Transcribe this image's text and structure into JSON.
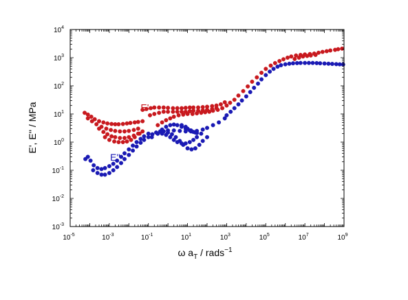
{
  "chart_data": {
    "type": "scatter",
    "xscale": "log",
    "yscale": "log",
    "xlim": [
      1e-05,
      1000000000.0
    ],
    "ylim": [
      0.001,
      10000.0
    ],
    "xlabel": {
      "main": "ω a",
      "sub": "T",
      "rest": " / rads",
      "sup": "−1"
    },
    "ylabel": "E', E'' / MPa",
    "x_ticks": [
      {
        "value": 1e-05,
        "base": "10",
        "exp": "-5"
      },
      {
        "value": 0.001,
        "base": "10",
        "exp": "-3"
      },
      {
        "value": 0.1,
        "base": "10",
        "exp": "-1"
      },
      {
        "value": 10.0,
        "base": "10",
        "exp": "1"
      },
      {
        "value": 1000.0,
        "base": "10",
        "exp": "3"
      },
      {
        "value": 100000.0,
        "base": "10",
        "exp": "5"
      },
      {
        "value": 10000000.0,
        "base": "10",
        "exp": "7"
      },
      {
        "value": 1000000000.0,
        "base": "10",
        "exp": "9"
      }
    ],
    "y_ticks": [
      {
        "value": 0.001,
        "base": "10",
        "exp": "-3"
      },
      {
        "value": 0.01,
        "base": "10",
        "exp": "-2"
      },
      {
        "value": 0.1,
        "base": "10",
        "exp": "-1"
      },
      {
        "value": 1.0,
        "base": "10",
        "exp": "0"
      },
      {
        "value": 10.0,
        "base": "10",
        "exp": "1"
      },
      {
        "value": 100.0,
        "base": "10",
        "exp": "2"
      },
      {
        "value": 1000.0,
        "base": "10",
        "exp": "3"
      },
      {
        "value": 10000.0,
        "base": "10",
        "exp": "4"
      }
    ],
    "annotations": [
      {
        "text": "E'",
        "x": 0.04,
        "y": 13,
        "color": "#c8191e"
      },
      {
        "text": "E''",
        "x": 0.0011,
        "y": 0.22,
        "color": "#1a1ab4"
      }
    ],
    "series": [
      {
        "name": "E'",
        "color": "#c8191e",
        "x": [
          5.5e-05,
          8e-05,
          0.00012,
          0.00018,
          0.0003,
          0.0005,
          0.0008,
          0.0013,
          0.002,
          0.003,
          0.005,
          0.008,
          0.012,
          0.02,
          0.03,
          0.05,
          8e-05,
          0.00013,
          0.00022,
          0.0004,
          0.0007,
          0.0012,
          0.002,
          0.0035,
          0.006,
          0.01,
          0.018,
          0.03,
          0.0003,
          0.0005,
          0.0008,
          0.0013,
          0.002,
          0.0035,
          0.006,
          0.01,
          0.018,
          0.03,
          0.05,
          0.0006,
          0.001,
          0.0018,
          0.003,
          0.005,
          0.008,
          0.013,
          0.02,
          0.035,
          0.05,
          0.08,
          0.13,
          0.2,
          0.35,
          0.6,
          1,
          1.8,
          3,
          5,
          8,
          13,
          20,
          35,
          60,
          100,
          180,
          300,
          500,
          800,
          0.12,
          0.2,
          0.35,
          0.6,
          1,
          1.8,
          3,
          5,
          8,
          13,
          20,
          35,
          60,
          100,
          180,
          300,
          0.3,
          0.5,
          0.8,
          1.3,
          2,
          3.5,
          6,
          10,
          18,
          30,
          50,
          80,
          130,
          200,
          350,
          600,
          1000,
          1500,
          2500,
          4000,
          7000,
          12000.0,
          20000.0,
          35000.0,
          60000.0,
          100000.0,
          180000.0,
          300000.0,
          500000.0,
          800000.0,
          1300000.0,
          2000000.0,
          3500000.0,
          6000000.0,
          10000000.0,
          18000000.0,
          30000000.0,
          50000000.0,
          80000000.0,
          130000000.0,
          200000000.0,
          350000000.0,
          500000000.0,
          800000000.0,
          3000000.0,
          5000000.0,
          8000000.0,
          13000000.0,
          20000000.0,
          35000000.0
        ],
        "y": [
          11,
          9.5,
          8,
          6.5,
          5.5,
          5,
          4.6,
          4.4,
          4.3,
          4.3,
          4.4,
          4.6,
          4.8,
          5,
          5.2,
          5.5,
          7,
          5.5,
          4.3,
          3.5,
          3,
          2.7,
          2.5,
          2.4,
          2.4,
          2.5,
          2.7,
          3,
          3,
          2.3,
          1.9,
          1.6,
          1.5,
          1.4,
          1.4,
          1.5,
          1.7,
          2,
          2.4,
          1.5,
          1.2,
          1.05,
          1,
          1,
          1.05,
          1.2,
          1.5,
          2,
          14,
          15,
          16,
          17,
          17,
          17,
          16.5,
          16,
          16,
          16,
          16.5,
          17,
          17,
          17,
          17.5,
          18,
          19,
          20,
          22,
          26,
          9,
          10,
          11,
          12,
          12,
          12,
          12,
          12,
          12,
          12.5,
          13,
          13,
          13.5,
          14,
          15,
          16,
          4,
          5,
          6,
          7,
          8,
          9,
          9.5,
          10,
          10,
          10.5,
          11,
          11.5,
          12,
          13,
          14,
          16,
          20,
          25,
          32,
          45,
          65,
          95,
          140,
          200,
          290,
          400,
          520,
          640,
          760,
          880,
          1000,
          1100,
          1200,
          1250,
          1300,
          1350,
          1400,
          1500,
          1600,
          1700,
          1800,
          1900,
          2000,
          2100,
          900,
          1000,
          1100,
          1150,
          1200,
          1250
        ]
      },
      {
        "name": "E''",
        "color": "#1a1ab4",
        "x": [
          6e-05,
          8e-05,
          0.00011,
          0.00016,
          0.00025,
          0.0004,
          0.0006,
          0.001,
          0.0016,
          0.0025,
          0.004,
          0.006,
          0.01,
          0.016,
          0.025,
          0.04,
          0.06,
          0.1,
          0.00015,
          0.00025,
          0.0004,
          0.0006,
          0.001,
          0.0016,
          0.0025,
          0.004,
          0.006,
          0.01,
          0.016,
          0.025,
          0.04,
          0.06,
          0.1,
          0.16,
          0.25,
          0.4,
          0.6,
          1,
          1.6,
          2.5,
          4,
          6,
          10,
          16,
          25,
          40,
          60,
          100,
          0.5,
          0.8,
          1.3,
          2,
          3,
          5,
          8,
          13,
          20,
          30,
          0.3,
          0.5,
          0.8,
          1.3,
          2,
          3,
          5,
          8,
          13,
          20,
          30,
          50,
          0.15,
          0.3,
          0.6,
          1,
          2,
          4,
          8,
          15,
          30,
          60,
          100,
          200,
          400,
          800,
          1000,
          1600,
          2500,
          4000,
          6000,
          10000.0,
          16000.0,
          25000.0,
          40000.0,
          60000.0,
          100000.0,
          160000.0,
          250000.0,
          400000.0,
          600000.0,
          1000000.0,
          1600000.0,
          2500000.0,
          4000000.0,
          6000000.0,
          10000000.0,
          16000000.0,
          25000000.0,
          40000000.0,
          60000000.0,
          100000000.0,
          160000000.0,
          250000000.0,
          400000000.0,
          600000000.0,
          900000000.0,
          5,
          8,
          10,
          15,
          25
        ],
        "y": [
          0.25,
          0.3,
          0.22,
          0.15,
          0.12,
          0.11,
          0.12,
          0.14,
          0.17,
          0.22,
          0.3,
          0.4,
          0.55,
          0.75,
          1,
          1.3,
          1.6,
          2,
          0.1,
          0.08,
          0.07,
          0.07,
          0.08,
          0.1,
          0.13,
          0.18,
          0.25,
          0.35,
          0.5,
          0.7,
          0.95,
          1.2,
          1.5,
          1.9,
          2.2,
          2.4,
          2.4,
          2.2,
          1.9,
          1.5,
          1.1,
          0.8,
          0.6,
          0.55,
          0.6,
          0.8,
          1.1,
          1.5,
          2.8,
          3.5,
          4,
          4.2,
          4,
          3.5,
          3,
          2.6,
          2.3,
          2.1,
          2,
          2,
          1.8,
          1.5,
          1.2,
          1,
          0.9,
          0.9,
          1,
          1.2,
          1.5,
          2,
          1.5,
          2,
          2.4,
          2.6,
          2.6,
          2.5,
          2.4,
          2.4,
          2.5,
          2.8,
          3.2,
          4,
          5,
          7,
          9,
          12,
          16,
          22,
          30,
          42,
          60,
          85,
          120,
          170,
          240,
          320,
          400,
          480,
          540,
          580,
          610,
          630,
          640,
          650,
          650,
          650,
          650,
          640,
          630,
          620,
          610,
          600,
          590,
          580,
          570,
          4,
          3.5,
          3,
          2.6,
          2.2
        ]
      }
    ]
  }
}
